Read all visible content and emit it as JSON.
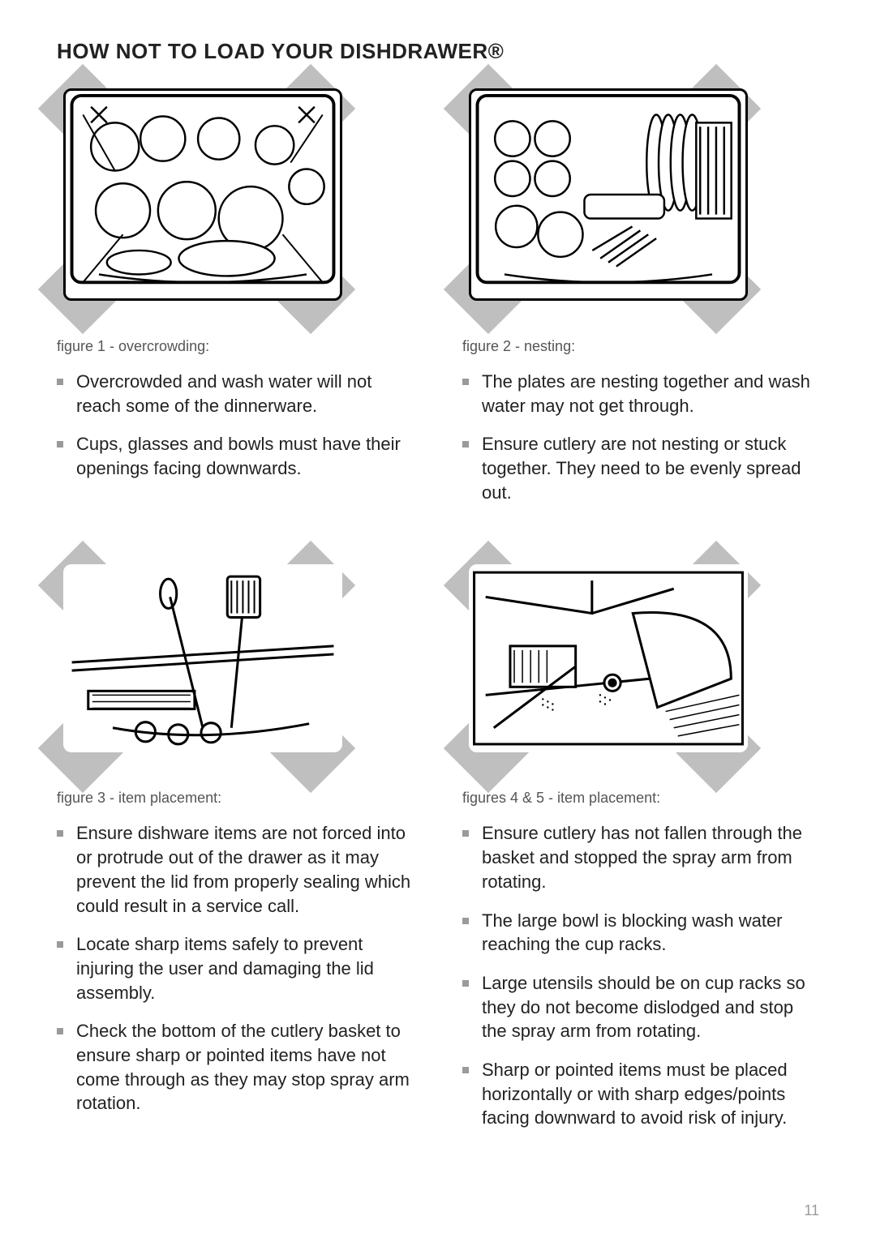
{
  "title": "HOW NOT TO LOAD YOUR DISHDRAWER®",
  "page_number": "11",
  "colors": {
    "text": "#222222",
    "caption": "#555555",
    "bullet": "#9a9a9a",
    "x_gray": "#bfbfbf",
    "page_num": "#9a9a9a",
    "background": "#ffffff"
  },
  "typography": {
    "title_fontsize_pt": 20,
    "title_weight": 700,
    "body_fontsize_pt": 16,
    "caption_fontsize_pt": 13,
    "font_family": "Segoe UI / Helvetica Neue / Arial"
  },
  "panels": [
    {
      "id": "fig1",
      "caption": "figure 1 - overcrowding:",
      "illustration": "dishdrawer-overcrowded",
      "bullets": [
        "Overcrowded and wash water will not reach some of the dinnerware.",
        "Cups, glasses and bowls must have their openings facing downwards."
      ]
    },
    {
      "id": "fig2",
      "caption": "figure 2 - nesting:",
      "illustration": "dishdrawer-nesting",
      "bullets": [
        "The plates are nesting together and wash water may not get through.",
        "Ensure cutlery are not nesting or stuck together.  They need to be evenly spread out."
      ]
    },
    {
      "id": "fig3",
      "caption": "figure 3 - item placement:",
      "illustration": "dishdrawer-protruding",
      "bullets": [
        "Ensure dishware items are not forced into or protrude out of the drawer as it may prevent the lid from properly sealing which could result in a service call.",
        "Locate sharp items safely to prevent injuring the user and damaging the lid assembly.",
        "Check the bottom of the cutlery basket to ensure sharp or pointed items have not come through as they may stop spray arm rotation."
      ]
    },
    {
      "id": "fig45",
      "caption": "figures 4 & 5 - item placement:",
      "illustration": "dishdrawer-spray-arm-block",
      "bullets": [
        "Ensure cutlery has not fallen through the basket and stopped the spray arm from rotating.",
        "The large bowl is blocking wash water reaching the cup racks.",
        "Large utensils should be on cup racks so they do not become dislodged and stop the spray arm from rotating.",
        "Sharp or pointed items must be placed horizontally or with sharp edges/points facing downward to avoid risk of injury."
      ]
    }
  ],
  "x_marker": {
    "description": "large grey X formed by eight diamond squares behind each illustration",
    "diamond_color": "#bfbfbf",
    "diamond_size_pct_of_figure": 0.3
  }
}
